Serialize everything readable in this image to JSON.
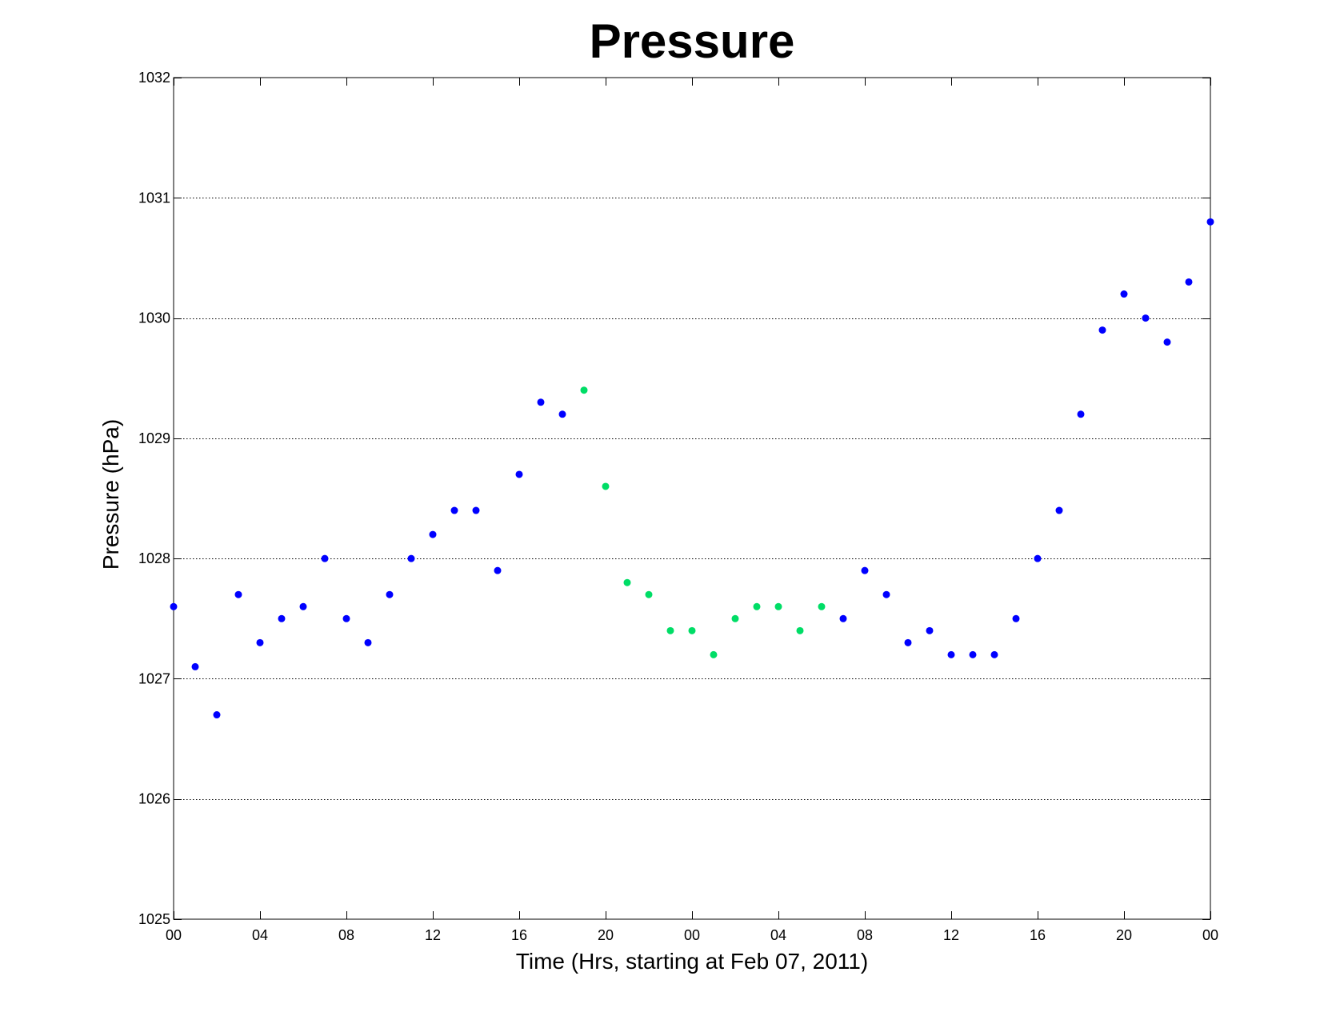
{
  "chart_data": {
    "type": "scatter",
    "title": "Pressure",
    "xlabel": "Time (Hrs, starting at Feb 07, 2011)",
    "ylabel": "Pressure (hPa)",
    "xlim": [
      0,
      48
    ],
    "ylim": [
      1025,
      1032
    ],
    "x_ticks": [
      0,
      4,
      8,
      12,
      16,
      20,
      24,
      28,
      32,
      36,
      40,
      44,
      48
    ],
    "x_tick_labels": [
      "00",
      "04",
      "08",
      "12",
      "16",
      "20",
      "00",
      "04",
      "08",
      "12",
      "16",
      "20",
      "00"
    ],
    "y_ticks": [
      1025,
      1026,
      1027,
      1028,
      1029,
      1030,
      1031,
      1032
    ],
    "y_tick_labels": [
      "1025",
      "1026",
      "1027",
      "1028",
      "1029",
      "1030",
      "1031",
      "1032"
    ],
    "grid": "horizontal dotted",
    "legend": "none",
    "series": [
      {
        "color": "#0000ff",
        "points": [
          [
            0,
            1027.6
          ],
          [
            1,
            1027.1
          ],
          [
            2,
            1026.7
          ],
          [
            3,
            1027.7
          ],
          [
            4,
            1027.3
          ],
          [
            5,
            1027.5
          ],
          [
            6,
            1027.6
          ],
          [
            7,
            1028.0
          ],
          [
            8,
            1027.5
          ],
          [
            9,
            1027.3
          ],
          [
            10,
            1027.7
          ],
          [
            11,
            1028.0
          ],
          [
            12,
            1028.2
          ],
          [
            13,
            1028.4
          ],
          [
            14,
            1028.4
          ],
          [
            15,
            1027.9
          ],
          [
            16,
            1028.7
          ],
          [
            17,
            1029.3
          ],
          [
            18,
            1029.2
          ],
          [
            31,
            1027.5
          ],
          [
            32,
            1027.9
          ],
          [
            33,
            1027.7
          ],
          [
            34,
            1027.3
          ],
          [
            35,
            1027.4
          ],
          [
            36,
            1027.2
          ],
          [
            37,
            1027.2
          ],
          [
            38,
            1027.2
          ],
          [
            39,
            1027.5
          ],
          [
            40,
            1028.0
          ],
          [
            41,
            1028.4
          ],
          [
            42,
            1029.2
          ],
          [
            43,
            1029.9
          ],
          [
            44,
            1030.2
          ],
          [
            45,
            1030.0
          ],
          [
            46,
            1029.8
          ],
          [
            47,
            1030.3
          ],
          [
            48,
            1030.8
          ]
        ]
      },
      {
        "color": "#00dd66",
        "points": [
          [
            19,
            1029.4
          ],
          [
            20,
            1028.6
          ],
          [
            21,
            1027.8
          ],
          [
            22,
            1027.7
          ],
          [
            23,
            1027.4
          ],
          [
            24,
            1027.4
          ],
          [
            25,
            1027.2
          ],
          [
            26,
            1027.5
          ],
          [
            27,
            1027.6
          ],
          [
            28,
            1027.6
          ],
          [
            29,
            1027.4
          ],
          [
            30,
            1027.6
          ]
        ]
      }
    ]
  }
}
